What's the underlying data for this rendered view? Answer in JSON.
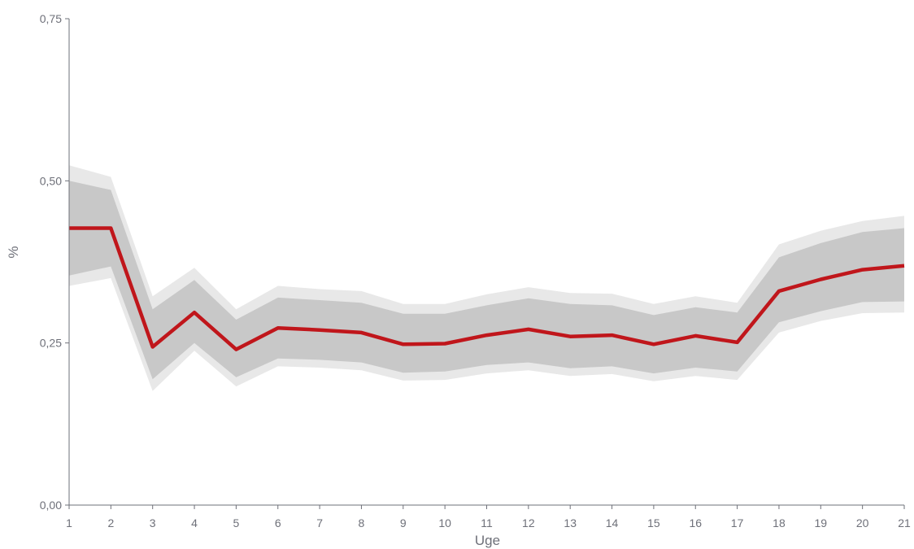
{
  "chart_data": {
    "type": "line",
    "title": "",
    "xlabel": "Uge",
    "ylabel": "%",
    "x": [
      1,
      2,
      3,
      4,
      5,
      6,
      7,
      8,
      9,
      10,
      11,
      12,
      13,
      14,
      15,
      16,
      17,
      18,
      19,
      20,
      21
    ],
    "xlim": [
      1,
      21
    ],
    "ylim": [
      0,
      0.75
    ],
    "yticks": [
      0.0,
      0.25,
      0.5,
      0.75
    ],
    "ytick_labels": [
      "0,00",
      "0,25",
      "0,50",
      "0,75"
    ],
    "xtick_labels": [
      "1",
      "2",
      "3",
      "4",
      "5",
      "6",
      "7",
      "8",
      "9",
      "10",
      "11",
      "12",
      "13",
      "14",
      "15",
      "16",
      "17",
      "18",
      "19",
      "20",
      "21"
    ],
    "grid": false,
    "legend": "none",
    "series": [
      {
        "role": "estimate",
        "color": "#c0161b",
        "values": [
          0.427,
          0.427,
          0.244,
          0.297,
          0.24,
          0.273,
          0.27,
          0.266,
          0.248,
          0.249,
          0.262,
          0.271,
          0.26,
          0.262,
          0.248,
          0.261,
          0.251,
          0.33,
          0.348,
          0.363,
          0.369
        ]
      }
    ],
    "bands": [
      {
        "role": "outer-interval",
        "color": "#e8e8e8",
        "lower": [
          0.338,
          0.35,
          0.176,
          0.238,
          0.183,
          0.214,
          0.212,
          0.208,
          0.192,
          0.193,
          0.203,
          0.208,
          0.199,
          0.202,
          0.191,
          0.199,
          0.193,
          0.266,
          0.284,
          0.296,
          0.297
        ],
        "upper": [
          0.524,
          0.506,
          0.322,
          0.366,
          0.302,
          0.338,
          0.333,
          0.33,
          0.31,
          0.31,
          0.325,
          0.336,
          0.327,
          0.326,
          0.31,
          0.322,
          0.312,
          0.402,
          0.423,
          0.438,
          0.446
        ]
      },
      {
        "role": "inner-interval",
        "color": "#c8c8c8",
        "lower": [
          0.354,
          0.368,
          0.194,
          0.25,
          0.197,
          0.226,
          0.224,
          0.22,
          0.204,
          0.206,
          0.216,
          0.22,
          0.211,
          0.214,
          0.203,
          0.212,
          0.206,
          0.282,
          0.299,
          0.313,
          0.314
        ],
        "upper": [
          0.5,
          0.486,
          0.302,
          0.347,
          0.286,
          0.32,
          0.316,
          0.312,
          0.295,
          0.295,
          0.308,
          0.319,
          0.31,
          0.308,
          0.293,
          0.305,
          0.297,
          0.382,
          0.404,
          0.421,
          0.427
        ]
      }
    ]
  }
}
